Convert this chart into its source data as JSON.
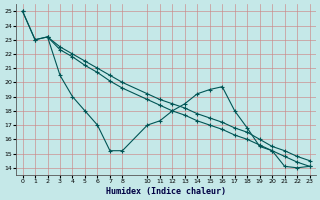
{
  "xlabel": "Humidex (Indice chaleur)",
  "bg_color": "#c5e8e8",
  "grid_color": "#cc8888",
  "line_color": "#005555",
  "xlim": [
    -0.5,
    23.5
  ],
  "ylim": [
    13.5,
    25.5
  ],
  "yticks": [
    14,
    15,
    16,
    17,
    18,
    19,
    20,
    21,
    22,
    23,
    24,
    25
  ],
  "xtick_positions": [
    0,
    1,
    2,
    3,
    4,
    5,
    6,
    7,
    8,
    10,
    11,
    12,
    13,
    14,
    15,
    16,
    17,
    18,
    19,
    20,
    21,
    22,
    23
  ],
  "xtick_labels": [
    "0",
    "1",
    "2",
    "3",
    "4",
    "5",
    "6",
    "7",
    "8",
    "10",
    "11",
    "12",
    "13",
    "14",
    "15",
    "16",
    "17",
    "18",
    "19",
    "20",
    "21",
    "22",
    "23"
  ],
  "series": [
    {
      "x": [
        0,
        1,
        2,
        3,
        4,
        5,
        6,
        7,
        8,
        10,
        11,
        12,
        13,
        14,
        15,
        16,
        17,
        18,
        19,
        20,
        21,
        22,
        23
      ],
      "y": [
        25.0,
        23.0,
        23.2,
        22.5,
        22.0,
        21.5,
        21.0,
        20.5,
        20.0,
        19.2,
        18.8,
        18.5,
        18.2,
        17.8,
        17.5,
        17.2,
        16.8,
        16.5,
        16.0,
        15.5,
        15.2,
        14.8,
        14.5
      ]
    },
    {
      "x": [
        0,
        1,
        2,
        3,
        4,
        5,
        6,
        7,
        8,
        10,
        11,
        12,
        13,
        14,
        15,
        16,
        17,
        18,
        19,
        20,
        21,
        22,
        23
      ],
      "y": [
        25.0,
        23.0,
        23.2,
        22.3,
        21.8,
        21.2,
        20.7,
        20.1,
        19.6,
        18.8,
        18.4,
        18.0,
        17.7,
        17.3,
        17.0,
        16.7,
        16.3,
        16.0,
        15.6,
        15.2,
        14.8,
        14.4,
        14.1
      ]
    },
    {
      "x": [
        2,
        3,
        4,
        5,
        6,
        7,
        8,
        10,
        11,
        12,
        13,
        14,
        15,
        16,
        17,
        18,
        19,
        20,
        21,
        22,
        23
      ],
      "y": [
        23.2,
        20.5,
        19.0,
        18.0,
        17.0,
        15.2,
        15.2,
        17.0,
        17.3,
        18.0,
        18.5,
        19.2,
        19.5,
        19.7,
        18.0,
        16.8,
        15.5,
        15.2,
        14.1,
        14.0,
        14.1
      ]
    }
  ]
}
